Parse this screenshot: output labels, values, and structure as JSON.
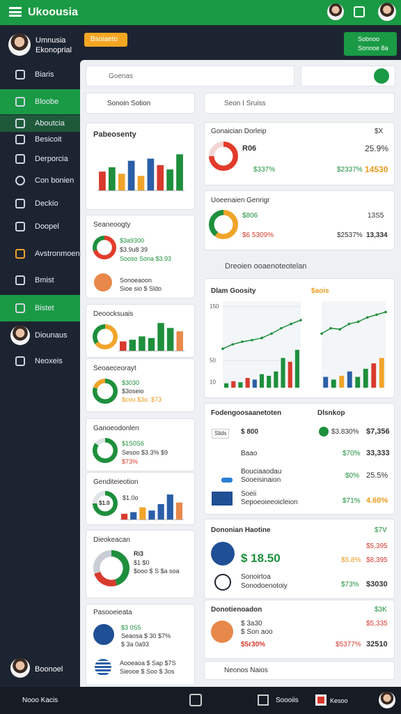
{
  "topbar": {
    "title": "Ukoousia"
  },
  "profile": {
    "name": "Umnusia",
    "role": "Ekonoprial"
  },
  "header": {
    "button": "Bsoiaeto",
    "action": [
      "Sobnoo",
      "Sonnoe 8a"
    ]
  },
  "nav": [
    "Biaris",
    "Bloobe",
    "Aboutcia",
    "Besicoit",
    "Derporcia",
    "Con bonien",
    "Deckio",
    "Doopel",
    "Avstronmoen",
    "Bmist",
    "Bistet",
    "Diounaus",
    "Neoxeis"
  ],
  "sidebar_footer": "Boonoel",
  "search": {
    "placeholder": "Goenas"
  },
  "left": {
    "header": "Sonoin Sotion",
    "cards": [
      {
        "title": "Pabeosenty",
        "charts": [
          {
            "type": "bar",
            "values": [
              45,
              55,
              40,
              70,
              35,
              75,
              60,
              50,
              85
            ],
            "colors": [
              "#d83a2e",
              "#1e8f3c",
              "#f0a42a",
              "#2a5ea8",
              "#f0a42a",
              "#2a5ea8",
              "#d83a2e",
              "#1e8f3c",
              "#1e8f3c"
            ],
            "ylim": [
              0,
              100
            ]
          }
        ]
      },
      {
        "title": "Seaneoogty",
        "charts": [
          {
            "type": "pie",
            "values": [
              70,
              30
            ],
            "colors": [
              "#e23b2b",
              "#1e8f3c"
            ]
          }
        ],
        "lines": [
          "$3a9300",
          "$3.9u8 39",
          "Sooso Sona $3.93",
          "Sonoeaoon",
          "Sioe sio $ Sldo"
        ]
      },
      {
        "title": "Deoocksuais",
        "charts": [
          {
            "type": "pie",
            "values": [
              65,
              35
            ],
            "colors": [
              "#f0a42a",
              "#1e8f3c"
            ]
          },
          {
            "type": "bar",
            "values": [
              30,
              35,
              45,
              40,
              85,
              70,
              60
            ],
            "colors": [
              "#d83a2e",
              "#1e8f3c",
              "#1e8f3c",
              "#1e8f3c",
              "#1e8f3c",
              "#1e8f3c",
              "#e8884a"
            ],
            "ylim": [
              0,
              100
            ]
          }
        ]
      },
      {
        "title": "Seoaeceorayt",
        "charts": [
          {
            "type": "pie",
            "values": [
              80,
              20
            ],
            "colors": [
              "#1e8f3c",
              "#f0a42a"
            ]
          }
        ],
        "lines": [
          "$3030",
          "$3oseio",
          "$cou $3o. $73"
        ]
      },
      {
        "title": "Ganoeodonlen",
        "charts": [
          {
            "type": "pie",
            "values": [
              85,
              15
            ],
            "colors": [
              "#1e8f3c",
              "#dfe3e8"
            ]
          }
        ],
        "lines": [
          "$1S0S6",
          "Sesoo $3.3% $9",
          "$73%"
        ]
      },
      {
        "title": "Genditeieotion",
        "charts": [
          {
            "type": "pie",
            "values": [
              75,
              25
            ],
            "colors": [
              "#1e8f3c",
              "#dfe3e8"
            ]
          },
          {
            "type": "bar",
            "values": [
              20,
              25,
              40,
              30,
              50,
              80,
              55
            ],
            "colors": [
              "#d83a2e",
              "#2a5ea8",
              "#f0a42a",
              "#2a5ea8",
              "#2a5ea8",
              "#2a5ea8",
              "#e8884a"
            ],
            "ylim": [
              0,
              100
            ]
          }
        ],
        "lines": [
          "$1.0",
          "$1.0o"
        ]
      },
      {
        "title": "Dieokeacan",
        "charts": [
          {
            "type": "pie",
            "values": [
              45,
              25,
              30
            ],
            "colors": [
              "#1e8f3c",
              "#d83a2e",
              "#c9ced6"
            ]
          }
        ],
        "lines": [
          "Ri3",
          "$1 $0",
          "$ooo $ S $a soa"
        ]
      },
      {
        "title": "Pasooeieata",
        "lines": [
          "$3 0S5",
          "Seaosa $ 30 $7%",
          "$ 3a 0a93",
          "Aooeaoa $ Sap $7S",
          "Sieooe $ Soo $ 3os"
        ]
      }
    ]
  },
  "right": {
    "header": "Seon I Sruiss",
    "cards": [
      {
        "title": "Gonaician Dorleip",
        "corner": "$X",
        "charts": [
          {
            "type": "pie",
            "values": [
              75,
              25
            ],
            "colors": [
              "#e23b2b",
              "#f3d6d3"
            ]
          }
        ],
        "lines": [
          "R06",
          "25.9%",
          "$337%",
          "$2337%",
          "14530"
        ]
      },
      {
        "title": "Uoeenaien Genrigr",
        "corner": "13S5",
        "charts": [
          {
            "type": "pie",
            "values": [
              60,
              40
            ],
            "colors": [
              "#f0a42a",
              "#1e8f3c"
            ]
          }
        ],
        "lines": [
          "$806",
          "$6 5309%",
          "$2537%",
          "13,334"
        ]
      }
    ],
    "section": "Dreoien ooaenoteotelan",
    "trend": {
      "title": "Dlam Goosity",
      "corner": "$aois",
      "charts": [
        {
          "type": "combo",
          "line": [
            72,
            80,
            85,
            88,
            92,
            100,
            110,
            118,
            125
          ],
          "bars": [
            8,
            12,
            10,
            18,
            15,
            25,
            22,
            30,
            55,
            48,
            70
          ],
          "bar_colors": [
            "#1e8f3c",
            "#d83a2e",
            "#1e8f3c",
            "#d83a2e",
            "#2a5ea8",
            "#1e8f3c",
            "#1e8f3c",
            "#1e8f3c",
            "#1e8f3c",
            "#d83a2e",
            "#1e8f3c"
          ],
          "ylim": [
            0,
            160
          ],
          "yticks": [
            10,
            50,
            150
          ]
        },
        {
          "type": "combo",
          "line": [
            100,
            110,
            108,
            118,
            122,
            130,
            135,
            140
          ],
          "bars": [
            20,
            15,
            22,
            30,
            20,
            35,
            45,
            55
          ],
          "bar_colors": [
            "#2a5ea8",
            "#1e8f3c",
            "#f0a42a",
            "#2a5ea8",
            "#1e8f3c",
            "#1e8f3c",
            "#d83a2e",
            "#f0a42a"
          ],
          "ylim": [
            0,
            160
          ]
        }
      ]
    },
    "table": {
      "title": "Fodengoosaanetoten",
      "side": "Dlsnkop",
      "rows": [
        [
          "Slids",
          "$ 800",
          "$3.830%",
          "$7,356"
        ],
        [
          "Baao",
          "$70%",
          "33,333"
        ],
        [
          "Bouciaaodau",
          "Sooeisinaion",
          "$0%",
          "25.5%"
        ],
        [
          "Soeii",
          "Sepoeoieeoicleion",
          "$71%",
          "4.60%"
        ]
      ]
    },
    "summary": {
      "title": "Dononian Haotine",
      "corner": "$7V",
      "lines": [
        "$ 18.50",
        "$5,395",
        "$5.8%",
        "$8,395",
        "Sonoirtoa",
        "Sonodoenotoiy",
        "$73%",
        "$3030"
      ]
    },
    "summary2": {
      "title": "Donotienoadon",
      "corner": "$3K",
      "lines": [
        "$ 3a30",
        "$ Son aoo",
        "$5,335",
        "$5r30%",
        "$5377%",
        "32510"
      ]
    },
    "footer": "Neonos Naios"
  },
  "bottom": {
    "left": "Nooo Kacis",
    "mid": "Soooiis",
    "badge": "Kesoo"
  }
}
